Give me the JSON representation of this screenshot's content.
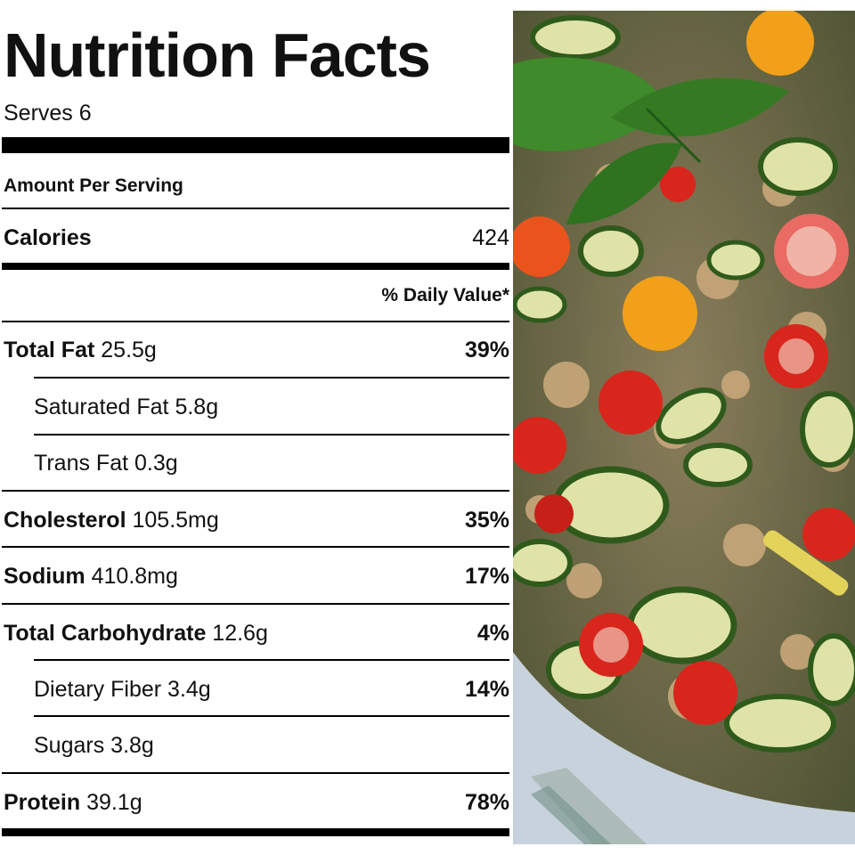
{
  "label": {
    "title": "Nutrition Facts",
    "serves": "Serves 6",
    "amount_per_serving": "Amount Per Serving",
    "calories_label": "Calories",
    "calories_value": "424",
    "daily_value_header": "% Daily Value*",
    "rows": [
      {
        "name": "Total Fat",
        "amount": "25.5g",
        "dv": "39%"
      },
      {
        "name": "Saturated Fat",
        "amount": "5.8g",
        "dv": ""
      },
      {
        "name": "Trans Fat",
        "amount": "0.3g",
        "dv": ""
      },
      {
        "name": "Cholesterol",
        "amount": "105.5mg",
        "dv": "35%"
      },
      {
        "name": "Sodium",
        "amount": "410.8mg",
        "dv": "17%"
      },
      {
        "name": "Total Carbohydrate",
        "amount": "12.6g",
        "dv": "4%"
      },
      {
        "name": "Dietary Fiber",
        "amount": "3.4g",
        "dv": "14%"
      },
      {
        "name": "Sugars",
        "amount": "3.8g",
        "dv": ""
      },
      {
        "name": "Protein",
        "amount": "39.1g",
        "dv": "78%"
      }
    ]
  },
  "colors": {
    "text": "#111111",
    "rule": "#000000",
    "zucchini_skin": "#2f5a1c",
    "zucchini_flesh": "#dfe3a8",
    "tomato_red": "#d8261c",
    "tomato_yellow": "#f2a01a",
    "basil": "#3f8a2a",
    "plate": "#c8d2dc"
  }
}
